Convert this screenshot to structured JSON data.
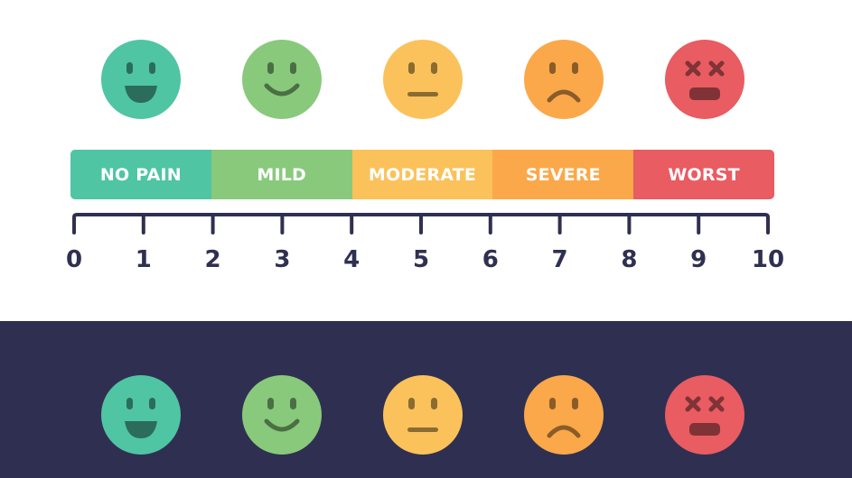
{
  "levels": [
    {
      "label": "NO PAIN",
      "color": "#4fc5a3",
      "face": "very-happy-face-icon"
    },
    {
      "label": "MILD",
      "color": "#89c97c",
      "face": "smiling-face-icon"
    },
    {
      "label": "MODERATE",
      "color": "#fbc25b",
      "face": "neutral-face-icon"
    },
    {
      "label": "SEVERE",
      "color": "#fba84a",
      "face": "sad-face-icon"
    },
    {
      "label": "WORST",
      "color": "#e85c62",
      "face": "dizzy-face-icon"
    }
  ],
  "scale": {
    "ticks": [
      "0",
      "1",
      "2",
      "3",
      "4",
      "5",
      "6",
      "7",
      "8",
      "9",
      "10"
    ],
    "axis_color": "#2f3051"
  },
  "bottom_band_color": "#2f3051"
}
